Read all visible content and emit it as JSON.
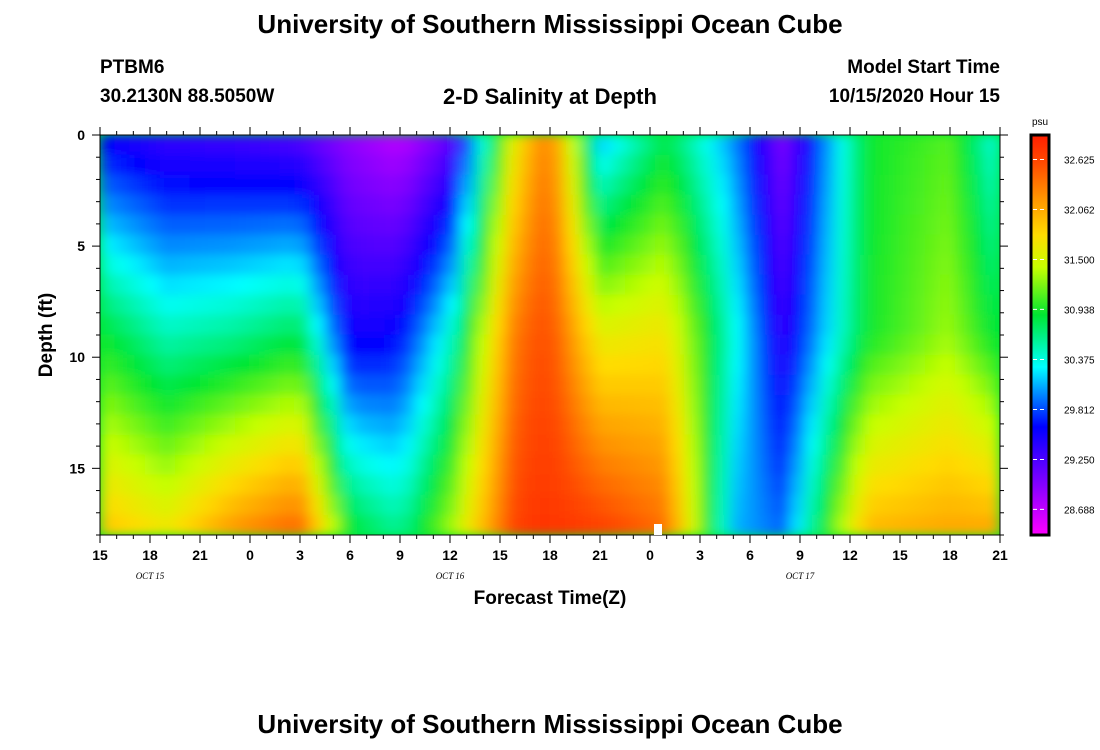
{
  "header": {
    "title_top": "University of Southern Mississippi Ocean Cube",
    "station_id": "PTBM6",
    "station_coords": "30.2130N 88.5050W",
    "plot_title": "2-D Salinity at Depth",
    "model_label": "Model Start Time",
    "model_time": "10/15/2020 Hour 15",
    "title_bottom": "University of Southern Mississippi Ocean Cube"
  },
  "chart_data": {
    "type": "heatmap",
    "title": "2-D Salinity at Depth",
    "xlabel": "Forecast Time(Z)",
    "ylabel": "Depth (ft)",
    "x_range_hours": [
      0,
      54
    ],
    "y_range_ft": [
      0,
      18
    ],
    "x_ticks": [
      "15",
      "18",
      "21",
      "0",
      "3",
      "6",
      "9",
      "12",
      "15",
      "18",
      "21",
      "0",
      "3",
      "6",
      "9",
      "12",
      "15",
      "18",
      "21"
    ],
    "y_ticks": [
      "0",
      "5",
      "10",
      "15"
    ],
    "y_tick_values": [
      0,
      5,
      10,
      15
    ],
    "date_labels": [
      {
        "label": "OCT 15",
        "tick_index": 1
      },
      {
        "label": "OCT 16",
        "tick_index": 7
      },
      {
        "label": "OCT 17",
        "tick_index": 14
      }
    ],
    "colorbar": {
      "unit": "psu",
      "min": 28.4,
      "max": 32.9,
      "tick_values": [
        28.688,
        29.25,
        29.812,
        30.375,
        30.938,
        31.5,
        32.062,
        32.625
      ],
      "tick_labels": [
        "28.688",
        "29.250",
        "29.812",
        "30.375",
        "30.938",
        "31.500",
        "32.062",
        "32.625"
      ]
    },
    "approx_salinity_profiles": [
      {
        "hour": 0,
        "surface": 29.55,
        "mid": 30.9,
        "bottom": 31.95
      },
      {
        "hour": 4,
        "surface": 29.35,
        "mid": 30.5,
        "bottom": 31.7
      },
      {
        "hour": 8,
        "surface": 29.3,
        "mid": 30.6,
        "bottom": 32.2
      },
      {
        "hour": 12,
        "surface": 29.2,
        "mid": 30.8,
        "bottom": 32.5
      },
      {
        "hour": 15,
        "surface": 28.9,
        "mid": 29.5,
        "bottom": 30.9
      },
      {
        "hour": 18,
        "surface": 28.7,
        "mid": 29.6,
        "bottom": 30.6
      },
      {
        "hour": 21,
        "surface": 29.1,
        "mid": 30.4,
        "bottom": 31.3
      },
      {
        "hour": 25,
        "surface": 31.7,
        "mid": 32.4,
        "bottom": 32.7
      },
      {
        "hour": 27,
        "surface": 32.4,
        "mid": 32.6,
        "bottom": 32.75
      },
      {
        "hour": 30,
        "surface": 30.1,
        "mid": 31.6,
        "bottom": 32.7
      },
      {
        "hour": 34,
        "surface": 30.8,
        "mid": 31.7,
        "bottom": 32.4
      },
      {
        "hour": 38,
        "surface": 30.0,
        "mid": 30.4,
        "bottom": 30.1
      },
      {
        "hour": 41,
        "surface": 29.0,
        "mid": 29.4,
        "bottom": 29.9
      },
      {
        "hour": 46,
        "surface": 30.9,
        "mid": 30.9,
        "bottom": 32.0
      },
      {
        "hour": 51,
        "surface": 31.1,
        "mid": 31.3,
        "bottom": 32.1
      },
      {
        "hour": 54,
        "surface": 30.3,
        "mid": 30.8,
        "bottom": 32.1
      }
    ]
  }
}
